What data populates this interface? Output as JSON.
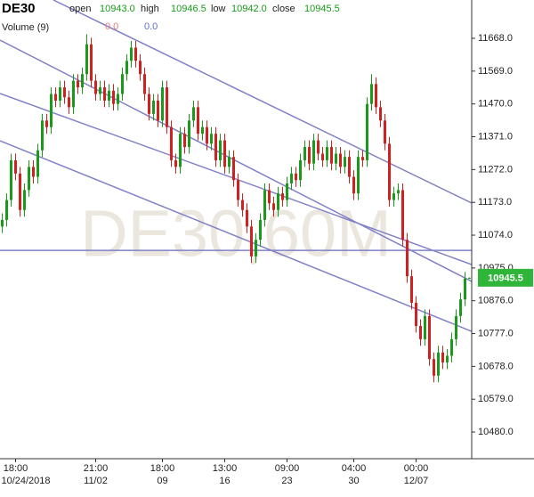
{
  "chart_data": {
    "type": "candlestick",
    "header": {
      "symbol": "DE30",
      "fields": [
        {
          "label": "open",
          "value": "10943.0"
        },
        {
          "label": "high",
          "value": "10946.5"
        },
        {
          "label": "low",
          "value": "10942.0"
        },
        {
          "label": "close",
          "value": "10945.5"
        }
      ],
      "volume_label": "Volume (9)",
      "volume_values": [
        "0.0",
        "0.0"
      ]
    },
    "watermark": "DE30,60M",
    "last_price": {
      "value": 10945.5,
      "label": "10945.5",
      "color": "#2fb53a"
    },
    "up_color": "#1a9a1a",
    "down_color": "#d02020",
    "line_color": "#8080c8",
    "xlim": [
      -0.5,
      105.5
    ],
    "xticks": [
      {
        "value": 3,
        "label": "18:00"
      },
      {
        "value": 21,
        "label": "21:00"
      },
      {
        "value": 36,
        "label": "18:00"
      },
      {
        "value": 50,
        "label": "13:00"
      },
      {
        "value": 64,
        "label": "09:00"
      },
      {
        "value": 79,
        "label": "04:00"
      },
      {
        "value": 93,
        "label": "00:00"
      }
    ],
    "xtick_dates": [
      "10/24/2018",
      "11/02",
      "09",
      "16",
      "23",
      "30",
      "12/07"
    ],
    "ylim": [
      10399.5,
      11783.6
    ],
    "yticks": [
      {
        "value": 11668,
        "label": "11668.0"
      },
      {
        "value": 11569,
        "label": "11569.0"
      },
      {
        "value": 11470,
        "label": "11470.0"
      },
      {
        "value": 11371,
        "label": "11371.0"
      },
      {
        "value": 11272,
        "label": "11272.0"
      },
      {
        "value": 11173,
        "label": "11173.0"
      },
      {
        "value": 11074,
        "label": "11074.0"
      },
      {
        "value": 10975,
        "label": "10975.0"
      },
      {
        "value": 10876,
        "label": "10876.0"
      },
      {
        "value": 10777,
        "label": "10777.0"
      },
      {
        "value": 10678,
        "label": "10678.0"
      },
      {
        "value": 10579,
        "label": "10579.0"
      },
      {
        "value": 10480,
        "label": "10480.0"
      }
    ],
    "lines": [
      {
        "x1": 11.5,
        "y1": 11783.6,
        "x2": 105.5,
        "y2": 11170.8
      },
      {
        "x1": -0.5,
        "y1": 11662.6,
        "x2": 105.5,
        "y2": 10934.3
      },
      {
        "x1": -0.5,
        "y1": 11501.4,
        "x2": 105.5,
        "y2": 10985.4
      },
      {
        "x1": -0.5,
        "y1": 11358.9,
        "x2": 105.5,
        "y2": 10783.8
      },
      {
        "x1": -0.5,
        "y1": 11028,
        "x2": 105.5,
        "y2": 11028
      }
    ],
    "open": [
      11100,
      11120,
      11180,
      11300,
      11260,
      11150,
      11210,
      11280,
      11250,
      11330,
      11420,
      11400,
      11500,
      11480,
      11520,
      11490,
      11460,
      11540,
      11520,
      11560,
      11650,
      11540,
      11500,
      11520,
      11480,
      11510,
      11470,
      11500,
      11560,
      11600,
      11640,
      11600,
      11560,
      11500,
      11440,
      11480,
      11420,
      11520,
      11400,
      11300,
      11280,
      11380,
      11340,
      11420,
      11460,
      11380,
      11400,
      11350,
      11380,
      11300,
      11360,
      11280,
      11310,
      11240,
      11180,
      11150,
      11100,
      11010,
      11060,
      11120,
      11210,
      11170,
      11150,
      11200,
      11180,
      11230,
      11260,
      11240,
      11300,
      11340,
      11290,
      11360,
      11320,
      11300,
      11340,
      11290,
      11320,
      11280,
      11310,
      11250,
      11200,
      11310,
      11300,
      11470,
      11530,
      11460,
      11420,
      11350,
      11180,
      11200,
      11210,
      11060,
      10950,
      10870,
      10800,
      10760,
      10830,
      10700,
      10650,
      10720,
      10690,
      10710,
      10760,
      10830,
      10880,
      10943
    ],
    "high": [
      11140,
      11200,
      11320,
      11320,
      11280,
      11230,
      11300,
      11300,
      11350,
      11440,
      11440,
      11520,
      11520,
      11540,
      11540,
      11510,
      11560,
      11560,
      11580,
      11680,
      11670,
      11560,
      11540,
      11540,
      11530,
      11530,
      11520,
      11580,
      11620,
      11660,
      11660,
      11620,
      11580,
      11520,
      11500,
      11500,
      11540,
      11540,
      11420,
      11320,
      11400,
      11400,
      11440,
      11480,
      11480,
      11420,
      11420,
      11400,
      11400,
      11380,
      11380,
      11330,
      11330,
      11260,
      11200,
      11170,
      11120,
      11080,
      11140,
      11230,
      11230,
      11190,
      11220,
      11220,
      11250,
      11280,
      11280,
      11320,
      11360,
      11360,
      11380,
      11380,
      11340,
      11360,
      11360,
      11340,
      11340,
      11330,
      11330,
      11270,
      11330,
      11330,
      11490,
      11560,
      11550,
      11480,
      11440,
      11370,
      11220,
      11230,
      11230,
      11080,
      10970,
      10890,
      10820,
      10850,
      10850,
      10720,
      10740,
      10740,
      10730,
      10780,
      10850,
      10900,
      10963,
      10946.5
    ],
    "low": [
      11080,
      11100,
      11160,
      11240,
      11130,
      11130,
      11190,
      11230,
      11230,
      11310,
      11380,
      11380,
      11460,
      11460,
      11470,
      11440,
      11440,
      11500,
      11500,
      11540,
      11520,
      11480,
      11480,
      11460,
      11460,
      11450,
      11450,
      11480,
      11540,
      11580,
      11580,
      11540,
      11480,
      11420,
      11420,
      11400,
      11400,
      11380,
      11280,
      11260,
      11260,
      11320,
      11320,
      11400,
      11360,
      11360,
      11330,
      11330,
      11280,
      11280,
      11260,
      11260,
      11220,
      11160,
      11130,
      11080,
      10990,
      10990,
      11040,
      11100,
      11150,
      11130,
      11130,
      11160,
      11160,
      11210,
      11220,
      11220,
      11280,
      11270,
      11270,
      11300,
      11280,
      11280,
      11270,
      11270,
      11260,
      11260,
      11230,
      11180,
      11180,
      11280,
      11280,
      11450,
      11440,
      11400,
      11330,
      11160,
      11160,
      11180,
      11040,
      10930,
      10850,
      10780,
      10740,
      10740,
      10680,
      10630,
      10630,
      10670,
      10670,
      10690,
      10740,
      10810,
      10860,
      10942
    ],
    "close": [
      11120,
      11180,
      11300,
      11260,
      11150,
      11210,
      11280,
      11250,
      11330,
      11420,
      11400,
      11500,
      11480,
      11520,
      11490,
      11460,
      11540,
      11520,
      11560,
      11650,
      11540,
      11500,
      11520,
      11480,
      11510,
      11470,
      11500,
      11560,
      11600,
      11640,
      11600,
      11560,
      11500,
      11440,
      11480,
      11420,
      11520,
      11400,
      11300,
      11280,
      11380,
      11340,
      11420,
      11460,
      11380,
      11400,
      11350,
      11380,
      11300,
      11360,
      11280,
      11310,
      11240,
      11180,
      11150,
      11100,
      11010,
      11060,
      11120,
      11210,
      11170,
      11150,
      11200,
      11180,
      11230,
      11260,
      11240,
      11300,
      11340,
      11290,
      11360,
      11320,
      11300,
      11340,
      11290,
      11320,
      11280,
      11310,
      11250,
      11200,
      11310,
      11300,
      11470,
      11530,
      11460,
      11420,
      11350,
      11180,
      11200,
      11210,
      11060,
      10950,
      10870,
      10800,
      10760,
      10830,
      10700,
      10650,
      10720,
      10690,
      10710,
      10760,
      10830,
      10880,
      10943,
      10945.5
    ]
  }
}
